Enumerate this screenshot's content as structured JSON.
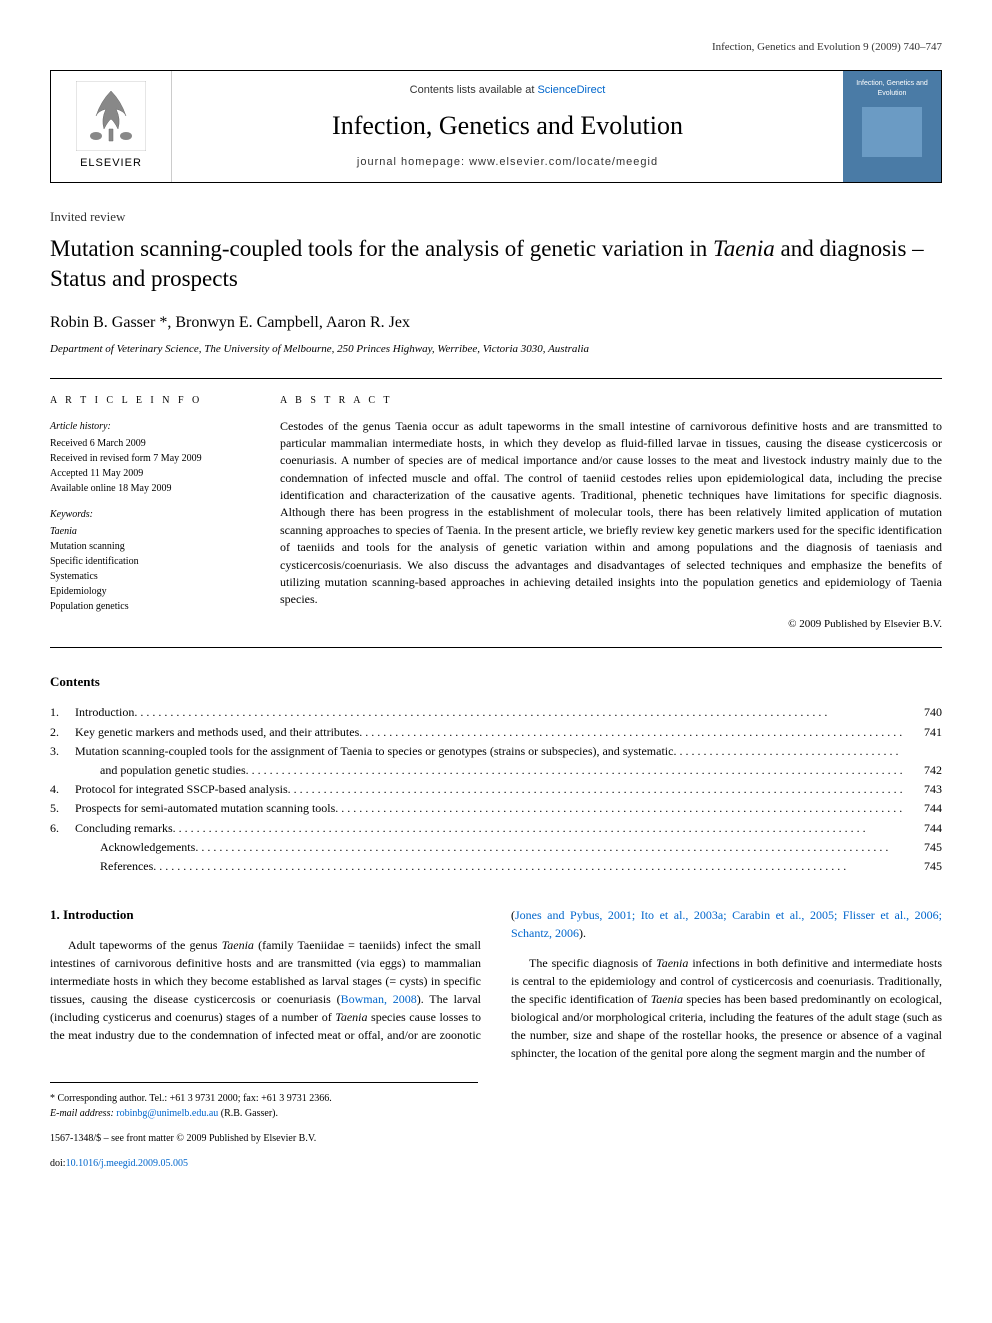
{
  "page_header": "Infection, Genetics and Evolution 9 (2009) 740–747",
  "journal_box": {
    "elsevier_label": "ELSEVIER",
    "contents_prefix": "Contents lists available at ",
    "contents_link": "ScienceDirect",
    "journal_name": "Infection, Genetics and Evolution",
    "homepage_prefix": "journal homepage: ",
    "homepage_url": "www.elsevier.com/locate/meegid",
    "cover_text": "Infection, Genetics and Evolution"
  },
  "article": {
    "type": "Invited review",
    "title_part1": "Mutation scanning-coupled tools for the analysis of genetic variation in ",
    "title_italic": "Taenia",
    "title_part2": " and diagnosis – Status and prospects",
    "authors": "Robin B. Gasser *, Bronwyn E. Campbell, Aaron R. Jex",
    "affiliation": "Department of Veterinary Science, The University of Melbourne, 250 Princes Highway, Werribee, Victoria 3030, Australia"
  },
  "info": {
    "heading": "A R T I C L E   I N F O",
    "history_label": "Article history:",
    "received": "Received 6 March 2009",
    "revised": "Received in revised form 7 May 2009",
    "accepted": "Accepted 11 May 2009",
    "online": "Available online 18 May 2009",
    "keywords_label": "Keywords:",
    "kw1": "Taenia",
    "kw2": "Mutation scanning",
    "kw3": "Specific identification",
    "kw4": "Systematics",
    "kw5": "Epidemiology",
    "kw6": "Population genetics"
  },
  "abstract": {
    "heading": "A B S T R A C T",
    "text": "Cestodes of the genus Taenia occur as adult tapeworms in the small intestine of carnivorous definitive hosts and are transmitted to particular mammalian intermediate hosts, in which they develop as fluid-filled larvae in tissues, causing the disease cysticercosis or coenuriasis. A number of species are of medical importance and/or cause losses to the meat and livestock industry mainly due to the condemnation of infected muscle and offal. The control of taeniid cestodes relies upon epidemiological data, including the precise identification and characterization of the causative agents. Traditional, phenetic techniques have limitations for specific diagnosis. Although there has been progress in the establishment of molecular tools, there has been relatively limited application of mutation scanning approaches to species of Taenia. In the present article, we briefly review key genetic markers used for the specific identification of taeniids and tools for the analysis of genetic variation within and among populations and the diagnosis of taeniasis and cysticercosis/coenuriasis. We also discuss the advantages and disadvantages of selected techniques and emphasize the benefits of utilizing mutation scanning-based approaches in achieving detailed insights into the population genetics and epidemiology of Taenia species.",
    "copyright": "© 2009 Published by Elsevier B.V."
  },
  "contents": {
    "heading": "Contents",
    "items": [
      {
        "num": "1.",
        "text": "Introduction",
        "page": "740"
      },
      {
        "num": "2.",
        "text": "Key genetic markers and methods used, and their attributes",
        "page": "741"
      },
      {
        "num": "3.",
        "text": "Mutation scanning-coupled tools for the assignment of Taenia to species or genotypes (strains or subspecies), and systematic",
        "page": ""
      },
      {
        "num": "",
        "text": "and population genetic studies",
        "page": "742"
      },
      {
        "num": "4.",
        "text": "Protocol for integrated SSCP-based analysis",
        "page": "743"
      },
      {
        "num": "5.",
        "text": "Prospects for semi-automated mutation scanning tools",
        "page": "744"
      },
      {
        "num": "6.",
        "text": "Concluding remarks",
        "page": "744"
      },
      {
        "num": "",
        "text": "Acknowledgements",
        "page": "745"
      },
      {
        "num": "",
        "text": "References",
        "page": "745"
      }
    ]
  },
  "body": {
    "section_heading": "1. Introduction",
    "para1_pre": "Adult tapeworms of the genus ",
    "para1_it1": "Taenia",
    "para1_mid1": " (family Taeniidae = taeniids) infect the small intestines of carnivorous definitive hosts and are transmitted (via eggs) to mammalian intermediate hosts in which they become established as larval stages (= cysts) in specific tissues, causing the disease cysticercosis or coenuriasis (",
    "para1_ref1": "Bowman, 2008",
    "para1_mid2": "). The larval (including cysticerus and coenurus) stages of a",
    "para2_pre": "number of ",
    "para2_it1": "Taenia",
    "para2_mid1": " species cause losses to the meat industry due to the condemnation of infected meat or offal, and/or are zoonotic (",
    "para2_ref1": "Jones and Pybus, 2001; Ito et al., 2003a; Carabin et al., 2005; Flisser et al., 2006; Schantz, 2006",
    "para2_end": ").",
    "para3_pre": "The specific diagnosis of ",
    "para3_it1": "Taenia",
    "para3_mid1": " infections in both definitive and intermediate hosts is central to the epidemiology and control of cysticercosis and coenuriasis. Traditionally, the specific identification of ",
    "para3_it2": "Taenia",
    "para3_end": " species has been based predominantly on ecological, biological and/or morphological criteria, including the features of the adult stage (such as the number, size and shape of the rostellar hooks, the presence or absence of a vaginal sphincter, the location of the genital pore along the segment margin and the number of"
  },
  "footnotes": {
    "corr_label": "* Corresponding author. Tel.: +61 3 9731 2000; fax: +61 3 9731 2366.",
    "email_label": "E-mail address: ",
    "email": "robinbg@unimelb.edu.au",
    "email_suffix": " (R.B. Gasser)."
  },
  "footer": {
    "line1": "1567-1348/$ – see front matter © 2009 Published by Elsevier B.V.",
    "doi_prefix": "doi:",
    "doi": "10.1016/j.meegid.2009.05.005"
  },
  "colors": {
    "link": "#0066cc",
    "cover_bg": "#4a7ba6",
    "text": "#000000"
  }
}
